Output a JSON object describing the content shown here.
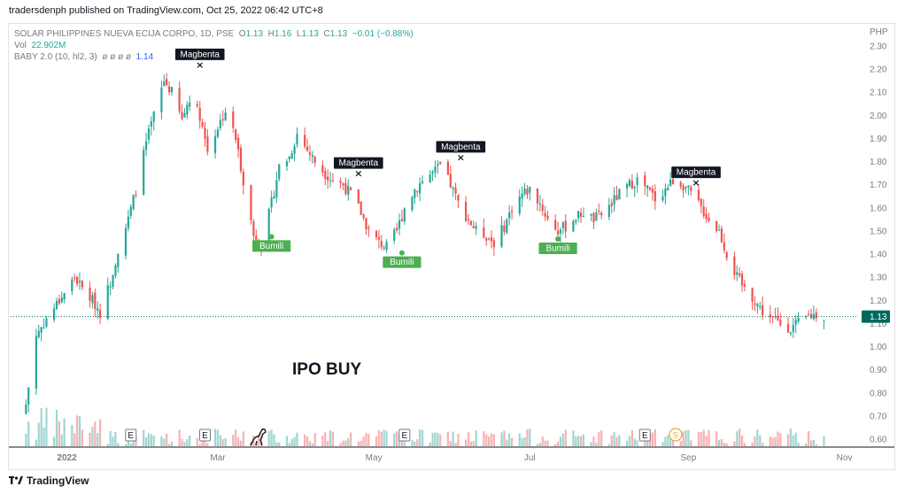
{
  "published": "tradersdenph published on TradingView.com, Oct 25, 2022 06:42 UTC+8",
  "legend": {
    "symbol": "SOLAR PHILIPPINES NUEVA ECIJA CORPO, 1D, PSE",
    "o_label": "O",
    "o": "1.13",
    "h_label": "H",
    "h": "1.16",
    "l_label": "L",
    "l": "1.13",
    "c_label": "C",
    "c": "1.13",
    "change": "−0.01 (−0.88%)",
    "vol_label": "Vol",
    "vol": "22.902M",
    "indicator_label": "BABY 2.0 (10, hl2, 3)",
    "indicator_values": "ø ø ø ø",
    "indicator_last": "1.14"
  },
  "footer": {
    "brand": "TradingView"
  },
  "colors": {
    "up": "#26a69a",
    "down": "#ef5350",
    "magbenta_bg": "#131722",
    "bumili_bg": "#4caf50",
    "price_tag": "#00695c",
    "earnings_icon": "#787b86",
    "dividend_icon": "#f0a532"
  },
  "chart_data": {
    "type": "candlestick",
    "currency": "PHP",
    "y_ticks": [
      "2.30",
      "2.20",
      "2.10",
      "2.00",
      "1.90",
      "1.80",
      "1.70",
      "1.60",
      "1.50",
      "1.40",
      "1.30",
      "1.20",
      "1.10",
      "1.00",
      "0.90",
      "0.80",
      "0.70",
      "0.60"
    ],
    "ylim": [
      0.57,
      2.33
    ],
    "x_ticks": [
      {
        "label": "2022",
        "date": "2022-01-01"
      },
      {
        "label": "Mar",
        "date": "2022-03-01"
      },
      {
        "label": "May",
        "date": "2022-05-01"
      },
      {
        "label": "Jul",
        "date": "2022-07-01"
      },
      {
        "label": "Sep",
        "date": "2022-09-01"
      },
      {
        "label": "Nov",
        "date": "2022-11-01"
      }
    ],
    "xlim": [
      "2021-12-10",
      "2022-11-06"
    ],
    "last_price": "1.13",
    "annotation_text": "IPO BUY",
    "price_path": [
      [
        "2021-12-16",
        0.75
      ],
      [
        "2021-12-20",
        1.05
      ],
      [
        "2021-12-24",
        1.12
      ],
      [
        "2021-12-29",
        1.2
      ],
      [
        "2022-01-04",
        1.3
      ],
      [
        "2022-01-07",
        1.25
      ],
      [
        "2022-01-11",
        1.2
      ],
      [
        "2022-01-14",
        1.15
      ],
      [
        "2022-01-18",
        1.28
      ],
      [
        "2022-01-21",
        1.42
      ],
      [
        "2022-01-25",
        1.55
      ],
      [
        "2022-01-28",
        1.68
      ],
      [
        "2022-02-01",
        1.88
      ],
      [
        "2022-02-04",
        2.0
      ],
      [
        "2022-02-08",
        2.15
      ],
      [
        "2022-02-11",
        2.1
      ],
      [
        "2022-02-15",
        1.98
      ],
      [
        "2022-02-18",
        2.08
      ],
      [
        "2022-02-22",
        2.0
      ],
      [
        "2022-02-25",
        1.85
      ],
      [
        "2022-03-01",
        1.95
      ],
      [
        "2022-03-04",
        2.02
      ],
      [
        "2022-03-08",
        1.9
      ],
      [
        "2022-03-11",
        1.72
      ],
      [
        "2022-03-15",
        1.48
      ],
      [
        "2022-03-18",
        1.43
      ],
      [
        "2022-03-22",
        1.62
      ],
      [
        "2022-03-25",
        1.78
      ],
      [
        "2022-03-29",
        1.82
      ],
      [
        "2022-04-01",
        1.92
      ],
      [
        "2022-04-05",
        1.85
      ],
      [
        "2022-04-08",
        1.8
      ],
      [
        "2022-04-12",
        1.75
      ],
      [
        "2022-04-15",
        1.72
      ],
      [
        "2022-04-19",
        1.7
      ],
      [
        "2022-04-22",
        1.66
      ],
      [
        "2022-04-26",
        1.58
      ],
      [
        "2022-04-29",
        1.5
      ],
      [
        "2022-05-03",
        1.45
      ],
      [
        "2022-05-06",
        1.43
      ],
      [
        "2022-05-10",
        1.5
      ],
      [
        "2022-05-13",
        1.6
      ],
      [
        "2022-05-17",
        1.68
      ],
      [
        "2022-05-20",
        1.72
      ],
      [
        "2022-05-24",
        1.75
      ],
      [
        "2022-05-27",
        1.78
      ],
      [
        "2022-05-31",
        1.7
      ],
      [
        "2022-06-03",
        1.62
      ],
      [
        "2022-06-07",
        1.55
      ],
      [
        "2022-06-10",
        1.5
      ],
      [
        "2022-06-14",
        1.48
      ],
      [
        "2022-06-17",
        1.45
      ],
      [
        "2022-06-21",
        1.52
      ],
      [
        "2022-06-24",
        1.6
      ],
      [
        "2022-06-28",
        1.66
      ],
      [
        "2022-07-01",
        1.68
      ],
      [
        "2022-07-05",
        1.62
      ],
      [
        "2022-07-08",
        1.55
      ],
      [
        "2022-07-12",
        1.5
      ],
      [
        "2022-07-15",
        1.52
      ],
      [
        "2022-07-19",
        1.56
      ],
      [
        "2022-07-22",
        1.58
      ],
      [
        "2022-07-26",
        1.55
      ],
      [
        "2022-07-29",
        1.57
      ],
      [
        "2022-08-02",
        1.62
      ],
      [
        "2022-08-05",
        1.66
      ],
      [
        "2022-08-09",
        1.7
      ],
      [
        "2022-08-12",
        1.72
      ],
      [
        "2022-08-16",
        1.68
      ],
      [
        "2022-08-19",
        1.64
      ],
      [
        "2022-08-23",
        1.68
      ],
      [
        "2022-08-26",
        1.72
      ],
      [
        "2022-08-30",
        1.7
      ],
      [
        "2022-09-02",
        1.66
      ],
      [
        "2022-09-06",
        1.6
      ],
      [
        "2022-09-09",
        1.55
      ],
      [
        "2022-09-13",
        1.5
      ],
      [
        "2022-09-16",
        1.4
      ],
      [
        "2022-09-20",
        1.3
      ],
      [
        "2022-09-23",
        1.25
      ],
      [
        "2022-09-27",
        1.2
      ],
      [
        "2022-09-30",
        1.15
      ],
      [
        "2022-10-04",
        1.12
      ],
      [
        "2022-10-07",
        1.1
      ],
      [
        "2022-10-11",
        1.08
      ],
      [
        "2022-10-14",
        1.1
      ],
      [
        "2022-10-18",
        1.13
      ],
      [
        "2022-10-21",
        1.14
      ],
      [
        "2022-10-24",
        1.13
      ]
    ],
    "signals": [
      {
        "label": "Magbenta",
        "type": "sell",
        "date": "2022-02-22",
        "price": 2.22
      },
      {
        "label": "Magbenta",
        "type": "sell",
        "date": "2022-04-25",
        "price": 1.75
      },
      {
        "label": "Magbenta",
        "type": "sell",
        "date": "2022-06-04",
        "price": 1.82
      },
      {
        "label": "Magbenta",
        "type": "sell",
        "date": "2022-09-04",
        "price": 1.71
      },
      {
        "label": "Bumili",
        "type": "buy",
        "date": "2022-03-22",
        "price": 1.46
      },
      {
        "label": "Bumili",
        "type": "buy",
        "date": "2022-05-12",
        "price": 1.39
      },
      {
        "label": "Bumili",
        "type": "buy",
        "date": "2022-07-12",
        "price": 1.45
      }
    ],
    "events": [
      {
        "label": "E",
        "kind": "earnings",
        "date": "2022-01-26"
      },
      {
        "label": "E",
        "kind": "earnings",
        "date": "2022-02-24"
      },
      {
        "label": "E",
        "kind": "earnings",
        "date": "2022-05-13"
      },
      {
        "label": "E",
        "kind": "earnings",
        "date": "2022-08-15"
      },
      {
        "label": "S",
        "kind": "split",
        "date": "2022-08-27"
      }
    ]
  }
}
